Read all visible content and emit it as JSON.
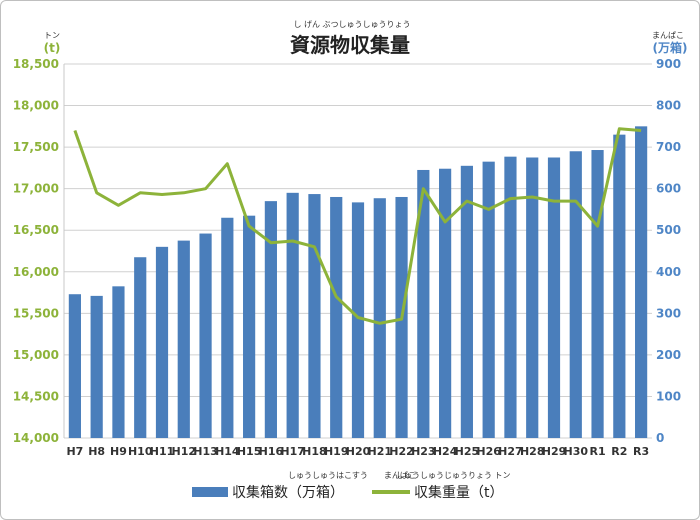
{
  "title_ruby": "し げん ぶつしゅうしゅうりょう",
  "left_axis": {
    "unit_ruby": "トン",
    "unit": "(t)",
    "color": "#8db33a"
  },
  "right_axis": {
    "unit_ruby": "まんぱこ",
    "unit": "(万箱)",
    "color": "#4f86c6"
  },
  "legend_ruby": {
    "bar_ruby": "しゅうしゅうはこすう　　まんぱこ",
    "line_ruby": "しゅうしゅうじゅうりょう トン"
  },
  "chart_data": {
    "type": "bar",
    "title": "資源物収集量",
    "categories": [
      "H7",
      "H8",
      "H9",
      "H10",
      "H11",
      "H12",
      "H13",
      "H14",
      "H15",
      "H16",
      "H17",
      "H18",
      "H19",
      "H20",
      "H21",
      "H22",
      "H23",
      "H24",
      "H25",
      "H26",
      "H27",
      "H28",
      "H29",
      "H30",
      "R1",
      "R2",
      "R3"
    ],
    "y_left": {
      "min": 14000,
      "max": 18500,
      "step": 500,
      "ticks": [
        "14,000",
        "14,500",
        "15,000",
        "15,500",
        "16,000",
        "16,500",
        "17,000",
        "17,500",
        "18,000",
        "18,500"
      ]
    },
    "y_right": {
      "min": 0,
      "max": 900,
      "step": 100,
      "ticks": [
        "0",
        "100",
        "200",
        "300",
        "400",
        "500",
        "600",
        "700",
        "800",
        "900"
      ]
    },
    "grid": true,
    "legend_position": "bottom",
    "series": [
      {
        "name": "収集箱数（万箱）",
        "type": "bar",
        "axis": "right",
        "color": "#4a7ebb",
        "values": [
          346,
          342,
          365,
          435,
          460,
          475,
          492,
          530,
          535,
          570,
          590,
          587,
          580,
          567,
          577,
          580,
          645,
          648,
          655,
          665,
          677,
          675,
          675,
          690,
          693,
          730,
          750
        ]
      },
      {
        "name": "収集重量（t）",
        "type": "line",
        "axis": "left",
        "color": "#8db33a",
        "values": [
          17700,
          16950,
          16800,
          16950,
          16930,
          16950,
          17000,
          17300,
          16550,
          16350,
          16370,
          16300,
          15700,
          15450,
          15380,
          15430,
          17000,
          16600,
          16850,
          16750,
          16880,
          16900,
          16850,
          16850,
          16550,
          17720,
          17700
        ]
      }
    ]
  }
}
